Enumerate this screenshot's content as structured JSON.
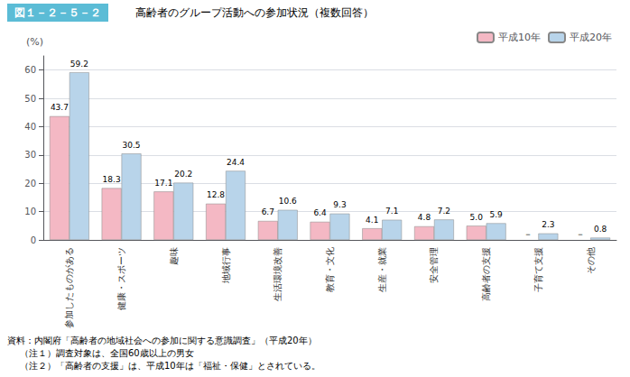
{
  "chart_data": {
    "type": "bar",
    "title": "高齢者のグループ活動への参加状況（複数回答）",
    "annotations": [
      "図１－２－５－２",
      "資料：内閣府「高齢者の地域社会への参加に関する意識調査」（平成20年）",
      "（注１）調査対象は、全国60歳以上の男女",
      "（注２）「高齢者の支援」は、平成10年は「福祉・保健」とされている。"
    ],
    "categories": [
      "参加したものがある",
      "健康・スポーツ",
      "趣味",
      "地域行事",
      "生活環境改善",
      "教育・文化",
      "生産・就業",
      "安全管理",
      "高齢者の支援",
      "子育て支援",
      "その他"
    ],
    "series": [
      {
        "name": "平成10年",
        "color": "#f4b8c4",
        "values": [
          43.7,
          18.3,
          17.1,
          12.8,
          6.7,
          6.4,
          4.1,
          4.8,
          5.0,
          null,
          null
        ],
        "value_labels": [
          "43.7",
          "18.3",
          "17.1",
          "12.8",
          "6.7",
          "6.4",
          "4.1",
          "4.8",
          "5.0",
          "－",
          "－"
        ]
      },
      {
        "name": "平成20年",
        "color": "#b8d4ea",
        "values": [
          59.2,
          30.5,
          20.2,
          24.4,
          10.6,
          9.3,
          7.1,
          7.2,
          5.9,
          2.3,
          0.8
        ]
      }
    ],
    "ylabel": "(%)",
    "ylim": [
      0,
      65
    ],
    "yticks": [
      0,
      10,
      20,
      30,
      40,
      50,
      60
    ],
    "grid": true,
    "legend": "upper right",
    "data_labels": true
  }
}
